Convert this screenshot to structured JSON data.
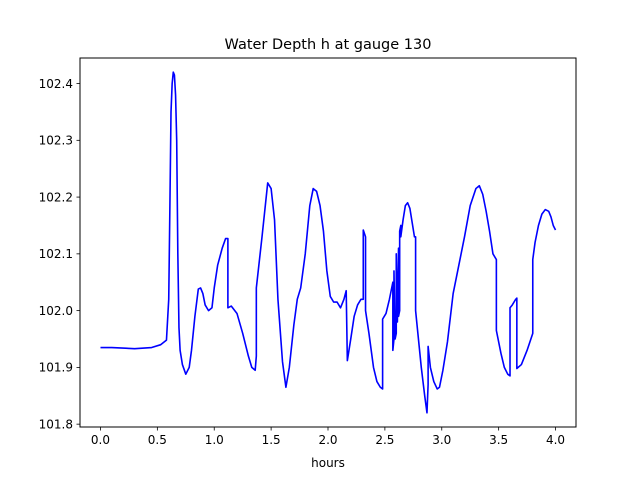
{
  "chart_data": {
    "type": "line",
    "title": "Water Depth h at gauge 130",
    "xlabel": "hours",
    "ylabel": "",
    "xlim": [
      -0.18,
      4.18
    ],
    "ylim": [
      101.795,
      102.445
    ],
    "xticks": [
      0.0,
      0.5,
      1.0,
      1.5,
      2.0,
      2.5,
      3.0,
      3.5,
      4.0
    ],
    "xtick_labels": [
      "0.0",
      "0.5",
      "1.0",
      "1.5",
      "2.0",
      "2.5",
      "3.0",
      "3.5",
      "4.0"
    ],
    "yticks": [
      101.8,
      101.9,
      102.0,
      102.1,
      102.2,
      102.3,
      102.4
    ],
    "ytick_labels": [
      "101.8",
      "101.9",
      "102.0",
      "102.1",
      "102.2",
      "102.3",
      "102.4"
    ],
    "grid": false,
    "series": [
      {
        "color": "#0000ff",
        "x": [
          0.0,
          0.1,
          0.3,
          0.45,
          0.53,
          0.58,
          0.6,
          0.61,
          0.62,
          0.63,
          0.64,
          0.65,
          0.66,
          0.67,
          0.68,
          0.69,
          0.7,
          0.72,
          0.75,
          0.78,
          0.8,
          0.83,
          0.86,
          0.88,
          0.9,
          0.92,
          0.95,
          0.98,
          1.0,
          1.03,
          1.07,
          1.1,
          1.12,
          1.12,
          1.15,
          1.2,
          1.25,
          1.3,
          1.33,
          1.36,
          1.37,
          1.37,
          1.42,
          1.47,
          1.5,
          1.53,
          1.56,
          1.6,
          1.63,
          1.66,
          1.7,
          1.73,
          1.76,
          1.8,
          1.84,
          1.87,
          1.9,
          1.93,
          1.96,
          1.99,
          2.02,
          2.05,
          2.08,
          2.11,
          2.14,
          2.16,
          2.17,
          2.2,
          2.23,
          2.26,
          2.29,
          2.31,
          2.31,
          2.33,
          2.33,
          2.36,
          2.4,
          2.43,
          2.46,
          2.48,
          2.48,
          2.51,
          2.54,
          2.57,
          2.57,
          2.58,
          2.58,
          2.59,
          2.6,
          2.6,
          2.61,
          2.62,
          2.62,
          2.63,
          2.63,
          2.64,
          2.64,
          2.66,
          2.68,
          2.7,
          2.72,
          2.74,
          2.76,
          2.77,
          2.77,
          2.79,
          2.82,
          2.85,
          2.87,
          2.88,
          2.88,
          2.9,
          2.93,
          2.96,
          2.98,
          3.01,
          3.05,
          3.1,
          3.15,
          3.2,
          3.25,
          3.3,
          3.33,
          3.36,
          3.39,
          3.42,
          3.45,
          3.48,
          3.48,
          3.52,
          3.55,
          3.58,
          3.6,
          3.6,
          3.62,
          3.65,
          3.66,
          3.66,
          3.7,
          3.75,
          3.8,
          3.8,
          3.82,
          3.85,
          3.88,
          3.91,
          3.94,
          3.96,
          3.98,
          4.0
        ],
        "y": [
          101.935,
          101.935,
          101.933,
          101.935,
          101.94,
          101.948,
          102.02,
          102.18,
          102.35,
          102.4,
          102.42,
          102.415,
          102.38,
          102.3,
          102.1,
          101.97,
          101.93,
          101.905,
          101.888,
          101.9,
          101.93,
          101.99,
          102.038,
          102.04,
          102.03,
          102.01,
          102.0,
          102.005,
          102.04,
          102.08,
          102.11,
          102.127,
          102.127,
          102.005,
          102.008,
          101.995,
          101.96,
          101.92,
          101.9,
          101.895,
          101.92,
          102.04,
          102.13,
          102.225,
          102.215,
          102.16,
          102.02,
          101.91,
          101.865,
          101.9,
          101.975,
          102.02,
          102.04,
          102.1,
          102.185,
          102.215,
          102.21,
          102.185,
          102.14,
          102.07,
          102.025,
          102.015,
          102.015,
          102.005,
          102.02,
          102.035,
          101.912,
          101.95,
          101.99,
          102.01,
          102.02,
          102.02,
          102.142,
          102.13,
          102.0,
          101.96,
          101.9,
          101.875,
          101.865,
          101.862,
          101.985,
          101.995,
          102.02,
          102.05,
          101.93,
          101.95,
          102.07,
          101.95,
          101.96,
          102.1,
          101.98,
          102.11,
          101.99,
          102.0,
          102.14,
          102.15,
          102.13,
          102.16,
          102.185,
          102.19,
          102.18,
          102.155,
          102.13,
          102.13,
          102.0,
          101.96,
          101.9,
          101.85,
          101.82,
          101.87,
          101.937,
          101.9,
          101.875,
          101.862,
          101.865,
          101.895,
          101.945,
          102.03,
          102.08,
          102.13,
          102.185,
          102.215,
          102.22,
          102.205,
          102.175,
          102.14,
          102.1,
          102.09,
          101.965,
          101.925,
          101.9,
          101.888,
          101.885,
          102.005,
          102.01,
          102.02,
          102.022,
          101.898,
          101.905,
          101.93,
          101.96,
          102.09,
          102.12,
          102.15,
          102.17,
          102.178,
          102.175,
          102.165,
          102.15,
          102.142
        ]
      }
    ]
  }
}
